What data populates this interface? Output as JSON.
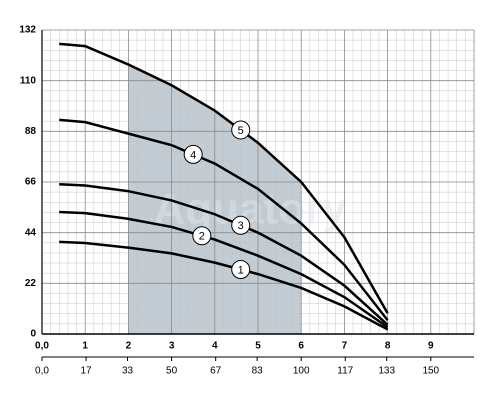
{
  "chart_data": {
    "type": "line",
    "watermark": "Aquatory",
    "x": [
      0.4,
      1,
      2,
      3,
      4,
      5,
      6,
      7,
      8
    ],
    "series": [
      {
        "name": "1",
        "color": "#000000",
        "values": [
          40,
          39.5,
          37.5,
          35,
          31,
          26,
          20,
          12,
          2
        ]
      },
      {
        "name": "2",
        "color": "#000000",
        "values": [
          53,
          52.5,
          50,
          46.5,
          41,
          34,
          26,
          16,
          3
        ]
      },
      {
        "name": "3",
        "color": "#000000",
        "values": [
          65,
          64.5,
          62,
          58,
          52,
          44,
          34,
          21,
          4
        ]
      },
      {
        "name": "4",
        "color": "#000000",
        "values": [
          93,
          92,
          87,
          82,
          74,
          63,
          48,
          30,
          6
        ]
      },
      {
        "name": "5",
        "color": "#000000",
        "values": [
          126,
          125,
          117,
          108,
          97,
          83,
          66,
          42,
          9
        ]
      }
    ],
    "shaded_range": [
      2,
      6
    ],
    "shade_color": "#b9c3ca",
    "xlim": [
      0,
      10
    ],
    "xticks": [
      {
        "value": 0,
        "label": "0,0"
      },
      1,
      2,
      3,
      4,
      5,
      6,
      7,
      8,
      9
    ],
    "x2lim": [
      0,
      166.67
    ],
    "x2ticks": [
      {
        "value": 0,
        "label": "0,0"
      },
      17,
      33,
      50,
      67,
      83,
      100,
      117,
      133,
      150
    ],
    "ylim": [
      0,
      132
    ],
    "yticks": [
      0,
      22,
      44,
      66,
      88,
      110,
      132
    ],
    "grid": true
  }
}
